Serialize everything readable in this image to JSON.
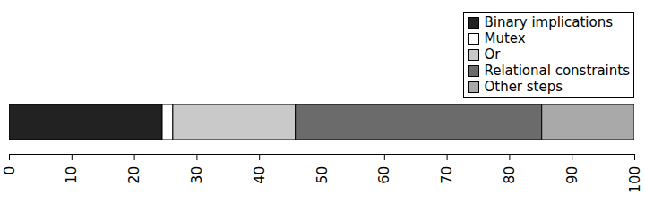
{
  "chart_data": {
    "type": "bar",
    "orientation": "horizontal",
    "stacked": true,
    "series": [
      {
        "name": "Binary implications",
        "color": "#222222",
        "values": [
          24.5
        ]
      },
      {
        "name": "Mutex",
        "color": "#ffffff",
        "values": [
          1.7
        ]
      },
      {
        "name": "Or",
        "color": "#c9c9c9",
        "values": [
          19.6
        ]
      },
      {
        "name": "Relational constraints",
        "color": "#6b6b6b",
        "values": [
          39.4
        ]
      },
      {
        "name": "Other steps",
        "color": "#a9a9a9",
        "values": [
          14.8
        ]
      }
    ],
    "xlim": [
      0,
      100
    ],
    "xticks": [
      0,
      10,
      20,
      30,
      40,
      50,
      60,
      70,
      80,
      90,
      100
    ],
    "legend": "top-right",
    "tick_labels": "x",
    "grid": false
  }
}
